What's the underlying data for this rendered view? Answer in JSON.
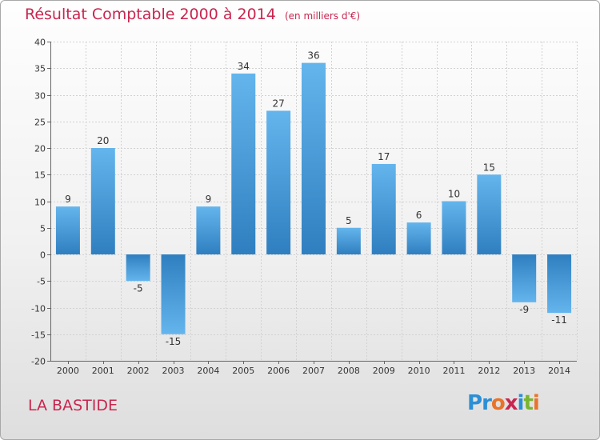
{
  "header": {
    "title": "Résultat Comptable 2000 à 2014",
    "unit": "(en milliers d'€)"
  },
  "footer": {
    "commune": "LA BASTIDE",
    "logo_letters": [
      "P",
      "r",
      "o",
      "x",
      "i",
      "t",
      "i"
    ],
    "logo_colors": [
      "#2b8fd6",
      "#2b8fd6",
      "#e8732a",
      "#c8264f",
      "#2b8fd6",
      "#7ab532",
      "#e8732a"
    ]
  },
  "colors": {
    "title": "#c8264f",
    "bar_light": "#64b5ed",
    "bar_dark": "#2f7fc0"
  },
  "chart_data": {
    "type": "bar",
    "title": "Résultat Comptable 2000 à 2014",
    "categories": [
      "2000",
      "2001",
      "2002",
      "2003",
      "2004",
      "2005",
      "2006",
      "2007",
      "2008",
      "2009",
      "2010",
      "2011",
      "2012",
      "2013",
      "2014"
    ],
    "values": [
      9,
      20,
      -5,
      -15,
      9,
      34,
      27,
      36,
      5,
      17,
      6,
      10,
      15,
      -9,
      -11
    ],
    "value_labels": [
      "9",
      "20",
      "-5",
      "-15",
      "9",
      "34",
      "27",
      "36",
      "5",
      "17",
      "6",
      "10",
      "15",
      "-9",
      "-11"
    ],
    "yticks": [
      40,
      35,
      30,
      25,
      20,
      15,
      10,
      5,
      0,
      -5,
      -10,
      -15,
      -20
    ],
    "ylim": [
      -20,
      40
    ],
    "xlabel": "",
    "ylabel": "",
    "grid": true
  }
}
